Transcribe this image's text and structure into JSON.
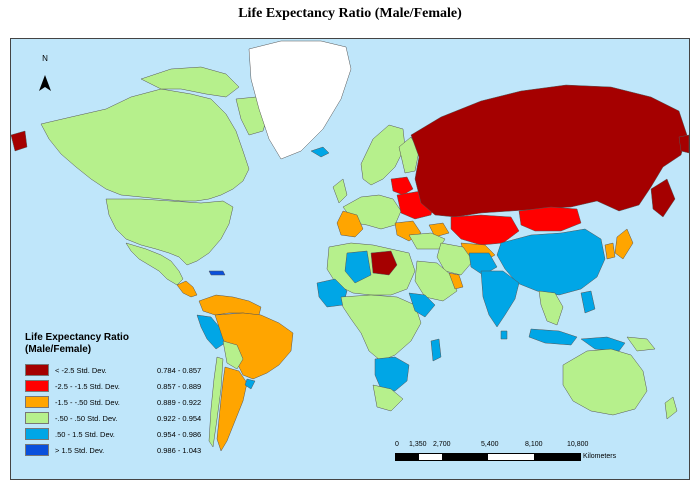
{
  "title": "Life Expectancy Ratio (Male/Female)",
  "north_arrow": {
    "label": "N"
  },
  "legend": {
    "title_line1": "Life Expectancy Ratio",
    "title_line2": "(Male/Female)",
    "classes": [
      {
        "label": "< -2.5 Std. Dev.",
        "range": "0.784 - 0.857",
        "color": "#a50000"
      },
      {
        "label": "-2.5 - -1.5 Std. Dev.",
        "range": "0.857 - 0.889",
        "color": "#ff0000"
      },
      {
        "label": "-1.5 - -.50 Std. Dev.",
        "range": "0.889 - 0.922",
        "color": "#ffa500"
      },
      {
        "label": "-.50 - .50 Std. Dev.",
        "range": "0.922 - 0.954",
        "color": "#b6f08c"
      },
      {
        "label": ".50 - 1.5 Std. Dev.",
        "range": "0.954 - 0.986",
        "color": "#00a6e6"
      },
      {
        "label": "> 1.5 Std. Dev.",
        "range": "0.986 - 1.043",
        "color": "#0a50dc"
      }
    ]
  },
  "scale_bar": {
    "ticks": [
      "0",
      "1,350",
      "2,700",
      "5,400",
      "8,100",
      "10,800"
    ],
    "unit": "Kilometers"
  },
  "colors": {
    "ocean": "#bfe6fa",
    "border": "#555555",
    "greenland": "#ffffff"
  }
}
